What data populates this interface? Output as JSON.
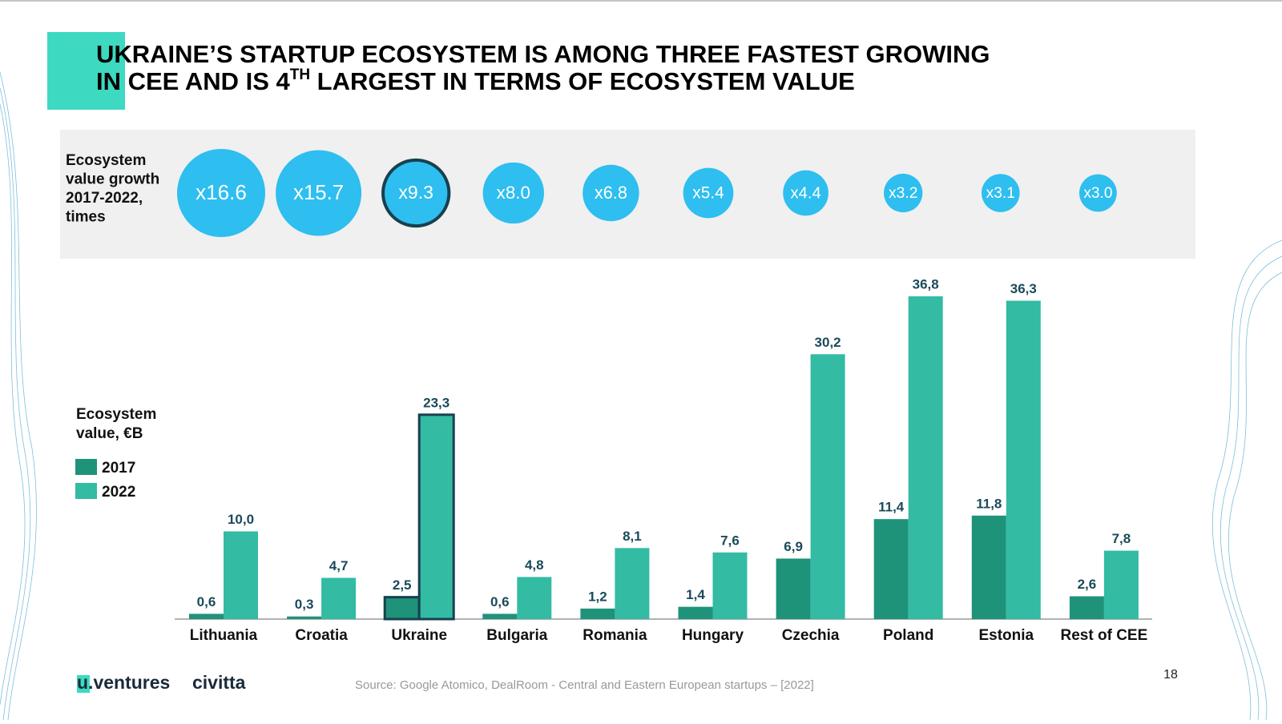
{
  "header": {
    "title_line1": "UKRAINE’S STARTUP ECOSYSTEM IS AMONG THREE FASTEST GROWING",
    "title_line2_a": "IN CEE AND IS 4",
    "title_sup": "TH",
    "title_line2_b": " LARGEST IN TERMS OF ECOSYSTEM VALUE"
  },
  "chart_data": {
    "type": "bar",
    "growth_label": [
      "Ecosystem",
      "value growth",
      "2017-2022,",
      "times"
    ],
    "growth": [
      16.6,
      15.7,
      9.3,
      8.0,
      6.8,
      5.4,
      4.4,
      3.2,
      3.1,
      3.0
    ],
    "growth_labels": [
      "x16.6",
      "x15.7",
      "x9.3",
      "x8.0",
      "x6.8",
      "x5.4",
      "x4.4",
      "x3.2",
      "x3.1",
      "x3.0"
    ],
    "growth_color": "#2ebef0",
    "ylabel": [
      "Ecosystem",
      "value, €B"
    ],
    "categories": [
      "Lithuania",
      "Croatia",
      "Ukraine",
      "Bulgaria",
      "Romania",
      "Hungary",
      "Czechia",
      "Poland",
      "Estonia",
      "Rest of CEE"
    ],
    "highlight": "Ukraine",
    "series": [
      {
        "name": "2017",
        "color": "#1f927a",
        "values": [
          0.6,
          0.3,
          2.5,
          0.6,
          1.2,
          1.4,
          6.9,
          11.4,
          11.8,
          2.6
        ],
        "value_labels": [
          "0,6",
          "0,3",
          "2,5",
          "0,6",
          "1,2",
          "1,4",
          "6,9",
          "11,4",
          "11,8",
          "2,6"
        ]
      },
      {
        "name": "2022",
        "color": "#33bba4",
        "values": [
          10.0,
          4.7,
          23.3,
          4.8,
          8.1,
          7.6,
          30.2,
          36.8,
          36.3,
          7.8
        ],
        "value_labels": [
          "10,0",
          "4,7",
          "23,3",
          "4,8",
          "8,1",
          "7,6",
          "30,2",
          "36,8",
          "36,3",
          "7,8"
        ]
      }
    ]
  },
  "footer": {
    "logo1": "u.ventures",
    "logo2": "civitta",
    "source": "Source: Google Atomico, DealRoom - Central and Eastern European startups – [2022]",
    "page": "18"
  }
}
